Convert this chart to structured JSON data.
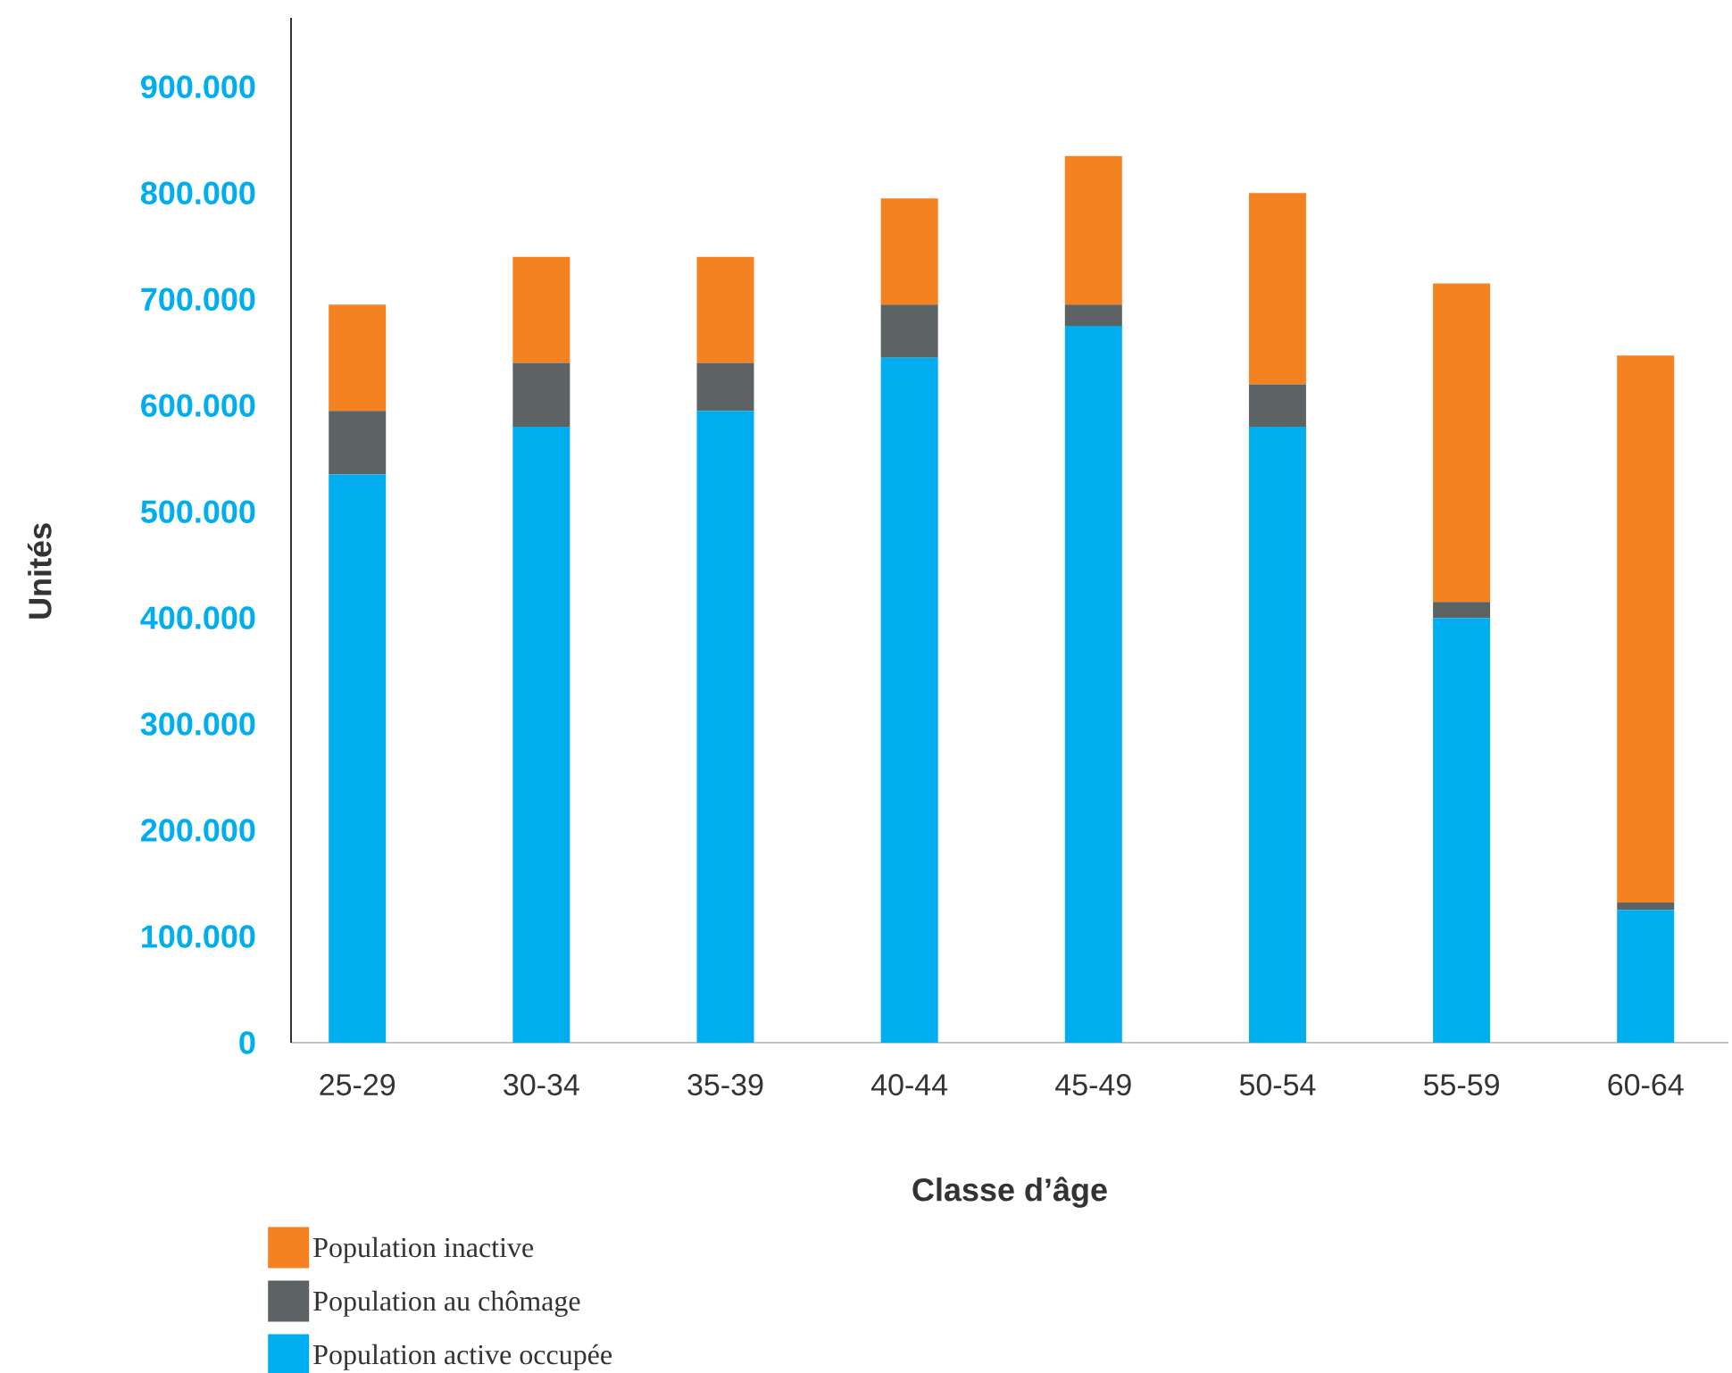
{
  "chart_data": {
    "type": "bar",
    "stacked": true,
    "xlabel": "Classe d’âge",
    "ylabel": "Unités",
    "categories": [
      "25-29",
      "30-34",
      "35-39",
      "40-44",
      "45-49",
      "50-54",
      "55-59",
      "60-64"
    ],
    "series": [
      {
        "name": "Population active occupée",
        "color": "#00aeef",
        "values": [
          535000,
          580000,
          595000,
          645000,
          675000,
          580000,
          400000,
          125000
        ]
      },
      {
        "name": "Population au chômage",
        "color": "#5d6264",
        "values": [
          60000,
          60000,
          45000,
          50000,
          20000,
          40000,
          15000,
          7000
        ]
      },
      {
        "name": "Population inactive",
        "color": "#f58220",
        "values": [
          100000,
          100000,
          100000,
          100000,
          140000,
          180000,
          300000,
          515000
        ]
      }
    ],
    "ylim": [
      0,
      965000
    ],
    "yticks": [
      0,
      {
        "value": 100000,
        "label": "100.000"
      },
      {
        "value": 200000,
        "label": "200.000"
      },
      {
        "value": 300000,
        "label": "300.000"
      },
      {
        "value": 400000,
        "label": "400.000"
      },
      {
        "value": 500000,
        "label": "500.000"
      },
      {
        "value": 600000,
        "label": "600.000"
      },
      {
        "value": 700000,
        "label": "700.000"
      },
      {
        "value": 800000,
        "label": "800.000"
      },
      {
        "value": 900000,
        "label": "900.000"
      }
    ],
    "legend": "bottom left",
    "grid": false
  }
}
